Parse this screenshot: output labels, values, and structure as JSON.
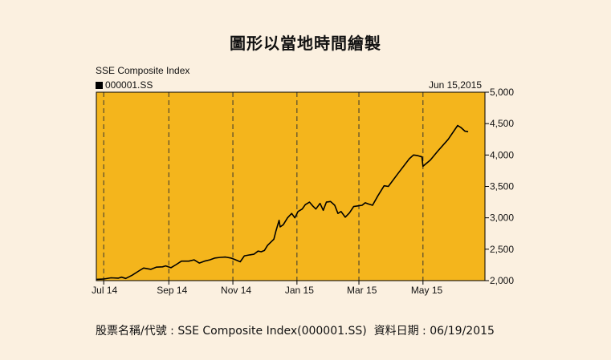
{
  "page": {
    "title": "圖形以當地時間繪製",
    "footer": "股票名稱/代號 : SSE Composite Index(000001.SS)  資料日期 : 06/19/2015"
  },
  "chart_data": {
    "type": "line",
    "title": "SSE Composite Index",
    "date_label": "Jun 15,2015",
    "background_color": "#f4b51c",
    "line_color": "#000000",
    "ylim": [
      2000,
      5000
    ],
    "y_ticks": [
      {
        "value": 2000,
        "label": "2,000"
      },
      {
        "value": 2500,
        "label": "2,500"
      },
      {
        "value": 3000,
        "label": "3,000"
      },
      {
        "value": 3500,
        "label": "3,500"
      },
      {
        "value": 4000,
        "label": "4,000"
      },
      {
        "value": 4500,
        "label": "4,500"
      },
      {
        "value": 5000,
        "label": "5,000"
      }
    ],
    "x_ticks": [
      {
        "date": "2014-07-01",
        "label": "Jul 14"
      },
      {
        "date": "2014-09-01",
        "label": "Sep 14"
      },
      {
        "date": "2014-11-01",
        "label": "Nov 14"
      },
      {
        "date": "2015-01-01",
        "label": "Jan 15"
      },
      {
        "date": "2015-03-01",
        "label": "Mar 15"
      },
      {
        "date": "2015-05-01",
        "label": "May 15"
      }
    ],
    "x_range": [
      "2014-06-24",
      "2015-06-29"
    ],
    "grid": "vertical-dashed",
    "series": [
      {
        "name": "000001.SS",
        "points": [
          [
            "2014-06-24",
            2020
          ],
          [
            "2014-07-01",
            2025
          ],
          [
            "2014-07-08",
            2045
          ],
          [
            "2014-07-15",
            2040
          ],
          [
            "2014-07-18",
            2055
          ],
          [
            "2014-07-22",
            2035
          ],
          [
            "2014-07-28",
            2085
          ],
          [
            "2014-08-04",
            2160
          ],
          [
            "2014-08-08",
            2200
          ],
          [
            "2014-08-15",
            2180
          ],
          [
            "2014-08-20",
            2215
          ],
          [
            "2014-08-26",
            2220
          ],
          [
            "2014-08-29",
            2235
          ],
          [
            "2014-09-03",
            2205
          ],
          [
            "2014-09-08",
            2255
          ],
          [
            "2014-09-13",
            2310
          ],
          [
            "2014-09-20",
            2310
          ],
          [
            "2014-09-25",
            2330
          ],
          [
            "2014-09-30",
            2280
          ],
          [
            "2014-10-05",
            2310
          ],
          [
            "2014-10-10",
            2330
          ],
          [
            "2014-10-15",
            2360
          ],
          [
            "2014-10-20",
            2370
          ],
          [
            "2014-10-25",
            2375
          ],
          [
            "2014-10-30",
            2360
          ],
          [
            "2014-11-03",
            2335
          ],
          [
            "2014-11-08",
            2300
          ],
          [
            "2014-11-12",
            2395
          ],
          [
            "2014-11-17",
            2410
          ],
          [
            "2014-11-21",
            2420
          ],
          [
            "2014-11-25",
            2470
          ],
          [
            "2014-11-28",
            2460
          ],
          [
            "2014-12-01",
            2480
          ],
          [
            "2014-12-04",
            2560
          ],
          [
            "2014-12-10",
            2660
          ],
          [
            "2014-12-12",
            2790
          ],
          [
            "2014-12-15",
            2960
          ],
          [
            "2014-12-16",
            2855
          ],
          [
            "2014-12-19",
            2890
          ],
          [
            "2014-12-23",
            3000
          ],
          [
            "2014-12-27",
            3070
          ],
          [
            "2014-12-30",
            3000
          ],
          [
            "2015-01-02",
            3100
          ],
          [
            "2015-01-06",
            3140
          ],
          [
            "2015-01-09",
            3210
          ],
          [
            "2015-01-13",
            3250
          ],
          [
            "2015-01-16",
            3190
          ],
          [
            "2015-01-19",
            3140
          ],
          [
            "2015-01-23",
            3230
          ],
          [
            "2015-01-26",
            3120
          ],
          [
            "2015-01-29",
            3250
          ],
          [
            "2015-02-02",
            3260
          ],
          [
            "2015-02-06",
            3200
          ],
          [
            "2015-02-09",
            3070
          ],
          [
            "2015-02-12",
            3100
          ],
          [
            "2015-02-16",
            3010
          ],
          [
            "2015-02-20",
            3080
          ],
          [
            "2015-02-24",
            3180
          ],
          [
            "2015-02-28",
            3190
          ],
          [
            "2015-03-04",
            3200
          ],
          [
            "2015-03-07",
            3240
          ],
          [
            "2015-03-10",
            3220
          ],
          [
            "2015-03-14",
            3200
          ],
          [
            "2015-03-19",
            3350
          ],
          [
            "2015-03-25",
            3510
          ],
          [
            "2015-03-29",
            3500
          ],
          [
            "2015-04-07",
            3700
          ],
          [
            "2015-04-18",
            3940
          ],
          [
            "2015-04-22",
            4000
          ],
          [
            "2015-04-26",
            3990
          ],
          [
            "2015-04-30",
            3970
          ],
          [
            "2015-05-01",
            3820
          ],
          [
            "2015-05-08",
            3920
          ],
          [
            "2015-05-15",
            4060
          ],
          [
            "2015-05-25",
            4250
          ],
          [
            "2015-06-03",
            4470
          ],
          [
            "2015-06-06",
            4440
          ],
          [
            "2015-06-10",
            4380
          ],
          [
            "2015-06-13",
            4370
          ]
        ]
      }
    ]
  }
}
